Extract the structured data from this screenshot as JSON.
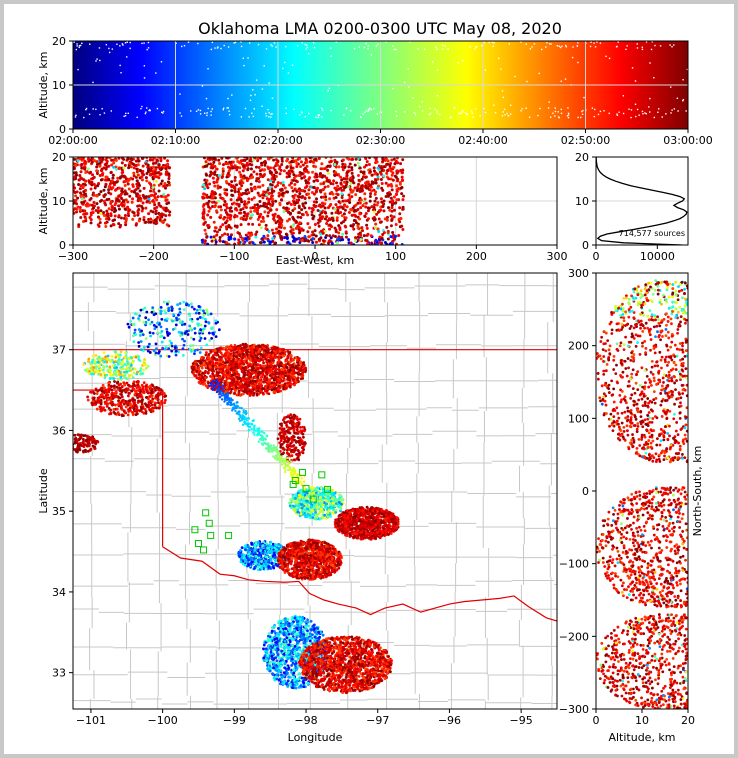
{
  "title": "Oklahoma LMA 0200-0300 UTC May 08, 2020",
  "colors": {
    "county": "#c8c8c8",
    "state": "#e00000",
    "grid": "#d8d8d8",
    "lma": "#00c800"
  },
  "chart_data": [
    {
      "type": "scatter",
      "name": "time-height",
      "ylabel": "Altitude, km",
      "xlabel": "",
      "ylim": [
        0,
        20
      ],
      "yticks": [
        "0",
        "10",
        "20"
      ],
      "xticks": [
        "02:00:00",
        "02:10:00",
        "02:20:00",
        "02:30:00",
        "02:40:00",
        "02:50:00",
        "03:00:00"
      ],
      "xlim": [
        "02:00:00",
        "03:00:00"
      ],
      "colormap": "jet",
      "grid": true
    },
    {
      "type": "scatter",
      "name": "east-west-altitude",
      "xlabel": "East-West, km",
      "ylabel": "Altitude, km",
      "xlim": [
        -300,
        300
      ],
      "ylim": [
        0,
        20
      ],
      "xticks": [
        "−300",
        "−200",
        "−100",
        "0",
        "100",
        "200",
        "300"
      ],
      "yticks": [
        "0",
        "10",
        "20"
      ],
      "grid": true,
      "clusters": [
        {
          "x": [
            -300,
            -180
          ],
          "y": [
            4,
            20
          ]
        },
        {
          "x": [
            -140,
            110
          ],
          "y": [
            0,
            20
          ]
        }
      ]
    },
    {
      "type": "line",
      "name": "altitude-histogram",
      "xlim": [
        0,
        15000
      ],
      "ylim": [
        0,
        20
      ],
      "xticks": [
        "0",
        "10000"
      ],
      "yticks": [
        "0",
        "10",
        "20"
      ],
      "annotation": "714,577 sources",
      "profile": [
        {
          "alt": 0.0,
          "count": 14000
        },
        {
          "alt": 0.5,
          "count": 4500
        },
        {
          "alt": 1.0,
          "count": 900
        },
        {
          "alt": 1.5,
          "count": 300
        },
        {
          "alt": 2.0,
          "count": 700
        },
        {
          "alt": 2.5,
          "count": 1800
        },
        {
          "alt": 3.0,
          "count": 3800
        },
        {
          "alt": 3.5,
          "count": 6000
        },
        {
          "alt": 4.0,
          "count": 8000
        },
        {
          "alt": 4.5,
          "count": 9800
        },
        {
          "alt": 5.0,
          "count": 11500
        },
        {
          "alt": 5.5,
          "count": 12700
        },
        {
          "alt": 6.0,
          "count": 13700
        },
        {
          "alt": 6.5,
          "count": 14300
        },
        {
          "alt": 7.0,
          "count": 14700
        },
        {
          "alt": 7.5,
          "count": 14800
        },
        {
          "alt": 8.0,
          "count": 14300
        },
        {
          "alt": 8.5,
          "count": 13300
        },
        {
          "alt": 9.0,
          "count": 12700
        },
        {
          "alt": 9.5,
          "count": 13300
        },
        {
          "alt": 10.0,
          "count": 14100
        },
        {
          "alt": 10.5,
          "count": 14400
        },
        {
          "alt": 11.0,
          "count": 13700
        },
        {
          "alt": 11.5,
          "count": 12400
        },
        {
          "alt": 12.0,
          "count": 10800
        },
        {
          "alt": 12.5,
          "count": 9000
        },
        {
          "alt": 13.0,
          "count": 7200
        },
        {
          "alt": 13.5,
          "count": 5600
        },
        {
          "alt": 14.0,
          "count": 4300
        },
        {
          "alt": 14.5,
          "count": 3200
        },
        {
          "alt": 15.0,
          "count": 2300
        },
        {
          "alt": 15.5,
          "count": 1600
        },
        {
          "alt": 16.0,
          "count": 1100
        },
        {
          "alt": 16.5,
          "count": 700
        },
        {
          "alt": 17.0,
          "count": 450
        },
        {
          "alt": 17.5,
          "count": 280
        },
        {
          "alt": 18.0,
          "count": 170
        },
        {
          "alt": 19.0,
          "count": 70
        },
        {
          "alt": 20.0,
          "count": 20
        }
      ]
    },
    {
      "type": "scatter",
      "name": "plan-view",
      "xlabel": "Longitude",
      "ylabel": "Latitude",
      "xlim": [
        -101.25,
        -94.5
      ],
      "ylim": [
        32.55,
        37.95
      ],
      "xticks": [
        {
          "v": -101,
          "label": "−101"
        },
        {
          "v": -100,
          "label": "−100"
        },
        {
          "v": -99,
          "label": "−99"
        },
        {
          "v": -98,
          "label": "−98"
        },
        {
          "v": -97,
          "label": "−97"
        },
        {
          "v": -96,
          "label": "−96"
        },
        {
          "v": -95,
          "label": "−95"
        }
      ],
      "yticks": [
        {
          "v": 33,
          "label": "33"
        },
        {
          "v": 34,
          "label": "34"
        },
        {
          "v": 35,
          "label": "35"
        },
        {
          "v": 36,
          "label": "36"
        },
        {
          "v": 37,
          "label": "37"
        }
      ],
      "stations": [
        {
          "lon": -98.05,
          "lat": 35.48
        },
        {
          "lon": -98.15,
          "lat": 35.38
        },
        {
          "lon": -98.0,
          "lat": 35.28
        },
        {
          "lon": -97.78,
          "lat": 35.45
        },
        {
          "lon": -97.7,
          "lat": 35.27
        },
        {
          "lon": -98.18,
          "lat": 35.33
        },
        {
          "lon": -97.9,
          "lat": 35.15
        },
        {
          "lon": -99.4,
          "lat": 34.98
        },
        {
          "lon": -99.35,
          "lat": 34.85
        },
        {
          "lon": -99.55,
          "lat": 34.77
        },
        {
          "lon": -99.33,
          "lat": 34.7
        },
        {
          "lon": -99.08,
          "lat": 34.7
        },
        {
          "lon": -99.5,
          "lat": 34.6
        },
        {
          "lon": -99.43,
          "lat": 34.52
        }
      ],
      "storms": [
        {
          "lon": -101.15,
          "lat": 35.84,
          "rlon": 0.25,
          "rlat": 0.12,
          "n": 140,
          "tmin": 0.9,
          "tmax": 1.0
        },
        {
          "lon": -100.5,
          "lat": 36.4,
          "rlon": 0.55,
          "rlat": 0.22,
          "n": 420,
          "tmin": 0.82,
          "tmax": 1.0
        },
        {
          "lon": -100.65,
          "lat": 36.8,
          "rlon": 0.45,
          "rlat": 0.18,
          "n": 220,
          "tmin": 0.3,
          "tmax": 0.75
        },
        {
          "lon": -99.85,
          "lat": 37.25,
          "rlon": 0.65,
          "rlat": 0.35,
          "n": 260,
          "tmin": 0.02,
          "tmax": 0.55
        },
        {
          "lon": -98.8,
          "lat": 36.75,
          "rlon": 0.8,
          "rlat": 0.32,
          "n": 1600,
          "tmin": 0.8,
          "tmax": 1.0
        },
        {
          "lon": -98.2,
          "lat": 35.9,
          "rlon": 0.2,
          "rlat": 0.3,
          "n": 200,
          "tmin": 0.85,
          "tmax": 1.0
        },
        {
          "lon": -97.15,
          "lat": 34.85,
          "rlon": 0.45,
          "rlat": 0.2,
          "n": 900,
          "tmin": 0.85,
          "tmax": 1.0
        },
        {
          "lon": -97.85,
          "lat": 35.1,
          "rlon": 0.38,
          "rlat": 0.2,
          "n": 520,
          "tmin": 0.25,
          "tmax": 0.65
        },
        {
          "lon": -98.6,
          "lat": 34.45,
          "rlon": 0.35,
          "rlat": 0.18,
          "n": 380,
          "tmin": 0.1,
          "tmax": 0.45
        },
        {
          "lon": -97.95,
          "lat": 34.4,
          "rlon": 0.45,
          "rlat": 0.25,
          "n": 900,
          "tmin": 0.8,
          "tmax": 1.0
        },
        {
          "lon": -98.15,
          "lat": 33.25,
          "rlon": 0.45,
          "rlat": 0.45,
          "n": 850,
          "tmin": 0.1,
          "tmax": 0.45
        },
        {
          "lon": -97.45,
          "lat": 33.1,
          "rlon": 0.65,
          "rlat": 0.35,
          "n": 1300,
          "tmin": 0.8,
          "tmax": 1.0
        }
      ]
    },
    {
      "type": "scatter",
      "name": "north-south-altitude",
      "xlabel": "Altitude, km",
      "ylabel": "North-South, km",
      "xlim": [
        0,
        20
      ],
      "ylim": [
        -300,
        300
      ],
      "xticks": [
        "0",
        "10",
        "20"
      ],
      "yticks": [
        "−300",
        "−200",
        "−100",
        "0",
        "100",
        "200",
        "300"
      ]
    }
  ]
}
